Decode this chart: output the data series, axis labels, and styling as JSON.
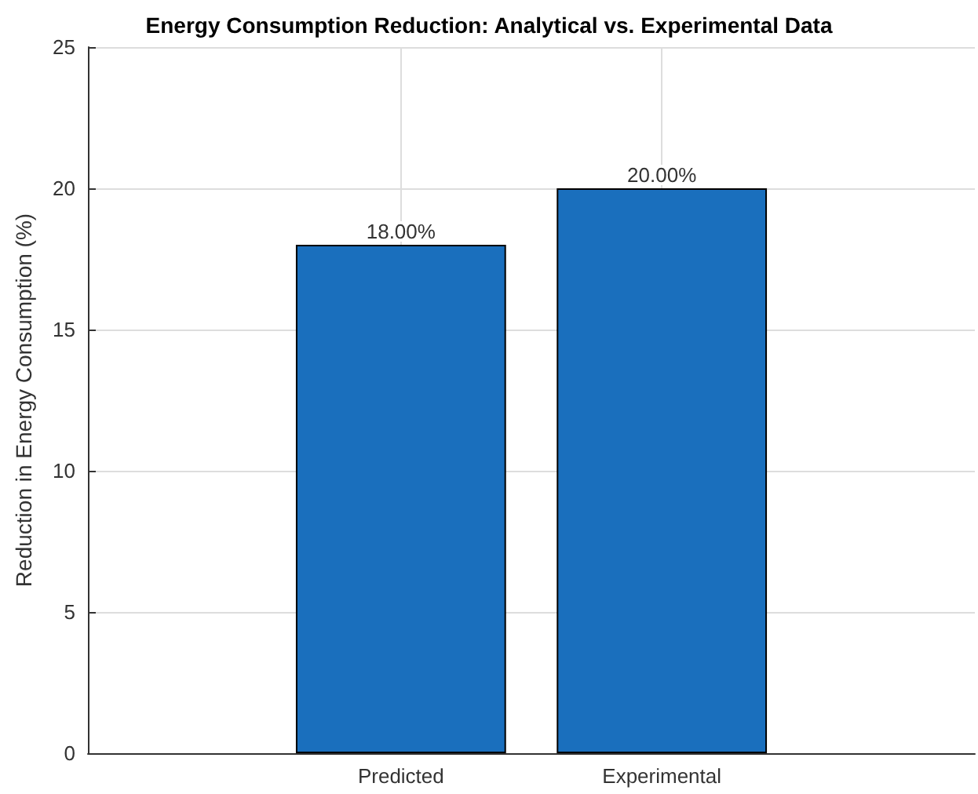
{
  "chart_data": {
    "type": "bar",
    "title": "Energy Consumption Reduction: Analytical vs. Experimental Data",
    "ylabel": "Reduction in Energy Consumption (%)",
    "categories": [
      "Predicted",
      "Experimental"
    ],
    "values": [
      18,
      20
    ],
    "value_labels": [
      "18.00%",
      "20.00%"
    ],
    "color": "#1a6fbd",
    "ylim": [
      0,
      25
    ],
    "yticks": [
      0,
      5,
      10,
      15,
      20,
      25
    ],
    "grid": true
  }
}
